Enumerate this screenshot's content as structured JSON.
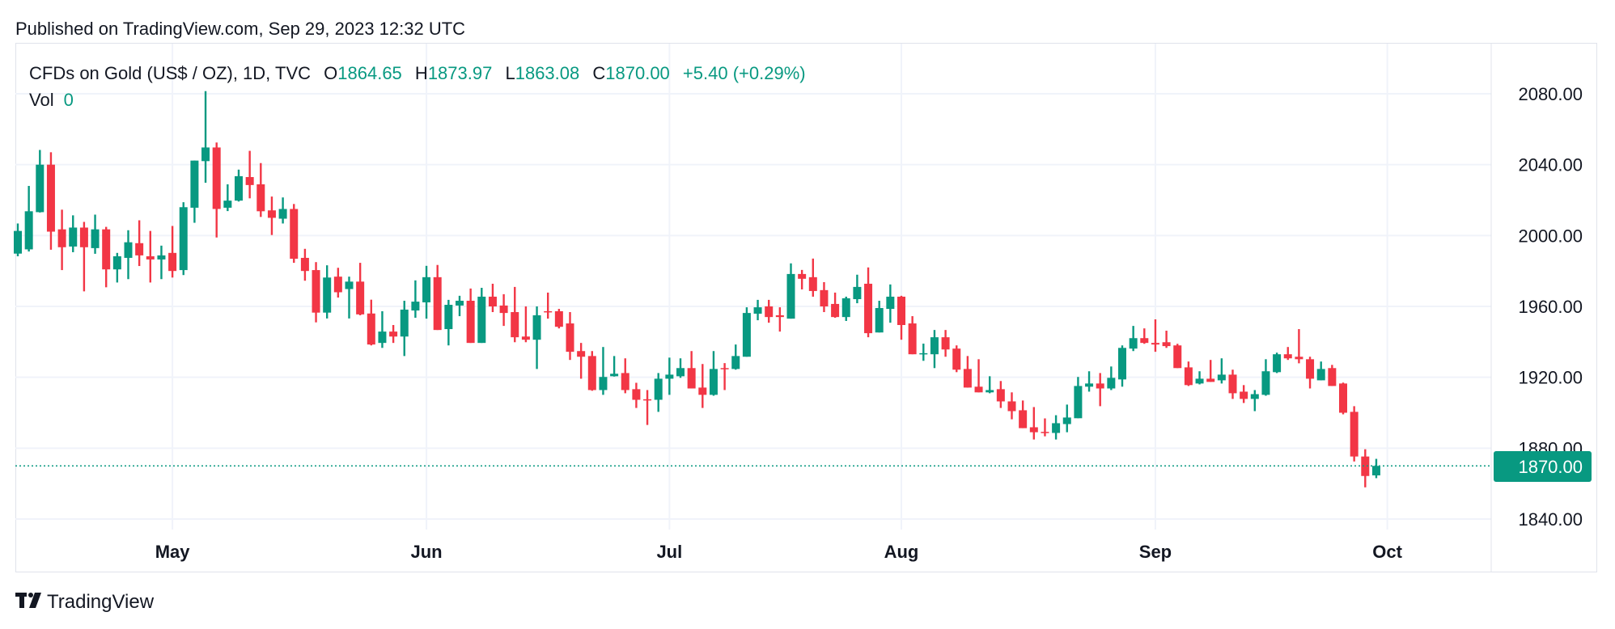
{
  "header": {
    "published": "Published on TradingView.com, Sep 29, 2023 12:32 UTC"
  },
  "legend": {
    "symbol": "CFDs on Gold (US$ / OZ), 1D, TVC",
    "o_label": "O",
    "o_value": "1864.65",
    "h_label": "H",
    "h_value": "1873.97",
    "l_label": "L",
    "l_value": "1863.08",
    "c_label": "C",
    "c_value": "1870.00",
    "change": "+5.40 (+0.29%)",
    "vol_label": "Vol",
    "vol_value": "0"
  },
  "footer": {
    "brand": "TradingView"
  },
  "colors": {
    "up": "#089981",
    "down": "#F23645",
    "grid": "#F0F3FA",
    "text": "#131722"
  },
  "chart_data": {
    "type": "candlestick",
    "title": "CFDs on Gold (US$ / OZ), 1D, TVC",
    "ylim": [
      1830,
      2095
    ],
    "y_ticks": [
      "2080.00",
      "2040.00",
      "2000.00",
      "1960.00",
      "1920.00",
      "1880.00",
      "1840.00"
    ],
    "y_tick_values": [
      2080,
      2040,
      2000,
      1960,
      1920,
      1880,
      1840
    ],
    "last_price": 1870.0,
    "last_price_label": "1870.00",
    "month_ticks": [
      {
        "label": "May",
        "index": 14
      },
      {
        "label": "Jun",
        "index": 37
      },
      {
        "label": "Jul",
        "index": 59
      },
      {
        "label": "Aug",
        "index": 80
      },
      {
        "label": "Sep",
        "index": 103
      },
      {
        "label": "Oct",
        "index": 124
      }
    ],
    "ohlc_fields": [
      "open",
      "high",
      "low",
      "close"
    ],
    "candles": [
      [
        1989.8,
        2006.8,
        1988.3,
        2002.6
      ],
      [
        1992.2,
        2028.0,
        1991.0,
        2013.7
      ],
      [
        2013.2,
        2048.3,
        2013.0,
        2040.0
      ],
      [
        2040.0,
        2047.0,
        1992.0,
        2002.2
      ],
      [
        2003.5,
        2014.6,
        1980.5,
        1993.4
      ],
      [
        1993.8,
        2011.4,
        1990.6,
        2004.5
      ],
      [
        2004.5,
        2007.7,
        1968.5,
        1993.4
      ],
      [
        1992.9,
        2011.8,
        1989.7,
        2003.5
      ],
      [
        2003.5,
        2004.9,
        1970.8,
        1980.9
      ],
      [
        1980.9,
        1990.2,
        1973.5,
        1988.3
      ],
      [
        1987.4,
        2003.0,
        1975.4,
        1996.2
      ],
      [
        1995.7,
        2008.6,
        1982.8,
        1988.8
      ],
      [
        1988.3,
        2002.6,
        1973.5,
        1986.5
      ],
      [
        1986.5,
        1994.3,
        1975.4,
        1988.8
      ],
      [
        1990.2,
        2005.4,
        1976.3,
        1980.0
      ],
      [
        1980.5,
        2018.8,
        1977.7,
        2016.0
      ],
      [
        2015.7,
        2042.3,
        2007.2,
        2042.3
      ],
      [
        2042.0,
        2081.5,
        2029.8,
        2049.7
      ],
      [
        2049.7,
        2052.5,
        1998.9,
        2015.0
      ],
      [
        2015.7,
        2028.9,
        2013.8,
        2019.7
      ],
      [
        2019.7,
        2037.2,
        2019.2,
        2033.5
      ],
      [
        2033.0,
        2047.8,
        2021.0,
        2028.5
      ],
      [
        2028.9,
        2040.9,
        2010.5,
        2013.7
      ],
      [
        2014.2,
        2022.0,
        2000.3,
        2010.0
      ],
      [
        2009.5,
        2021.5,
        2006.8,
        2015.0
      ],
      [
        2015.0,
        2017.8,
        1984.6,
        1986.9
      ],
      [
        1987.4,
        1992.5,
        1974.5,
        1980.0
      ],
      [
        1980.5,
        1985.0,
        1951.0,
        1956.5
      ],
      [
        1956.5,
        1983.2,
        1953.2,
        1976.3
      ],
      [
        1976.8,
        1981.8,
        1965.0,
        1968.0
      ],
      [
        1969.8,
        1976.8,
        1953.2,
        1974.0
      ],
      [
        1974.0,
        1984.6,
        1955.0,
        1955.5
      ],
      [
        1956.0,
        1963.8,
        1938.0,
        1938.5
      ],
      [
        1939.4,
        1957.3,
        1936.6,
        1945.8
      ],
      [
        1945.8,
        1949.5,
        1939.4,
        1943.0
      ],
      [
        1943.0,
        1963.2,
        1932.0,
        1958.2
      ],
      [
        1957.7,
        1974.7,
        1953.6,
        1962.7
      ],
      [
        1962.3,
        1982.9,
        1953.1,
        1976.5
      ],
      [
        1976.5,
        1983.4,
        1946.7,
        1946.7
      ],
      [
        1947.2,
        1963.7,
        1938.0,
        1960.9
      ],
      [
        1960.5,
        1966.0,
        1954.5,
        1963.2
      ],
      [
        1963.2,
        1970.1,
        1939.4,
        1939.4
      ],
      [
        1939.4,
        1970.5,
        1939.4,
        1965.5
      ],
      [
        1965.5,
        1972.8,
        1956.8,
        1960.0
      ],
      [
        1960.5,
        1966.9,
        1949.0,
        1956.3
      ],
      [
        1956.8,
        1971.0,
        1939.8,
        1942.6
      ],
      [
        1943.0,
        1960.0,
        1939.8,
        1941.2
      ],
      [
        1941.2,
        1960.0,
        1924.7,
        1955.0
      ],
      [
        1957.3,
        1967.8,
        1953.1,
        1956.8
      ],
      [
        1957.3,
        1958.6,
        1947.6,
        1948.5
      ],
      [
        1950.4,
        1956.8,
        1929.8,
        1934.4
      ],
      [
        1934.8,
        1939.4,
        1919.2,
        1931.6
      ],
      [
        1932.0,
        1934.8,
        1912.4,
        1912.8
      ],
      [
        1912.8,
        1937.1,
        1910.1,
        1920.2
      ],
      [
        1920.6,
        1932.0,
        1920.4,
        1922.0
      ],
      [
        1922.4,
        1930.7,
        1911.0,
        1912.8
      ],
      [
        1913.3,
        1916.9,
        1902.7,
        1907.3
      ],
      [
        1907.6,
        1912.8,
        1893.1,
        1907.3
      ],
      [
        1907.3,
        1922.4,
        1900.5,
        1919.2
      ],
      [
        1919.2,
        1931.1,
        1910.1,
        1921.5
      ],
      [
        1920.6,
        1930.7,
        1919.7,
        1925.2
      ],
      [
        1925.2,
        1934.8,
        1913.7,
        1913.7
      ],
      [
        1914.2,
        1927.5,
        1902.7,
        1910.1
      ],
      [
        1910.1,
        1934.8,
        1909.6,
        1924.7
      ],
      [
        1925.2,
        1928.0,
        1912.8,
        1924.7
      ],
      [
        1924.7,
        1938.5,
        1924.3,
        1932.0
      ],
      [
        1931.6,
        1959.5,
        1931.6,
        1956.3
      ],
      [
        1955.9,
        1963.7,
        1952.2,
        1959.5
      ],
      [
        1960.0,
        1963.7,
        1950.8,
        1954.0
      ],
      [
        1955.0,
        1959.5,
        1945.8,
        1954.0
      ],
      [
        1953.1,
        1984.3,
        1953.1,
        1978.3
      ],
      [
        1978.3,
        1980.6,
        1969.6,
        1975.6
      ],
      [
        1976.5,
        1987.0,
        1965.5,
        1968.7
      ],
      [
        1969.2,
        1973.7,
        1956.8,
        1960.0
      ],
      [
        1961.4,
        1967.8,
        1953.6,
        1954.0
      ],
      [
        1954.0,
        1965.5,
        1951.8,
        1964.6
      ],
      [
        1964.1,
        1977.9,
        1961.8,
        1971.0
      ],
      [
        1972.8,
        1982.0,
        1942.6,
        1944.9
      ],
      [
        1945.3,
        1963.2,
        1945.3,
        1959.1
      ],
      [
        1958.6,
        1972.4,
        1950.8,
        1965.5
      ],
      [
        1965.5,
        1966.0,
        1941.2,
        1949.5
      ],
      [
        1950.4,
        1954.5,
        1933.0,
        1933.0
      ],
      [
        1933.0,
        1939.0,
        1929.3,
        1933.6
      ],
      [
        1933.0,
        1946.7,
        1925.2,
        1942.6
      ],
      [
        1942.6,
        1946.7,
        1931.6,
        1935.7
      ],
      [
        1936.2,
        1938.0,
        1922.9,
        1924.3
      ],
      [
        1924.7,
        1932.0,
        1914.2,
        1914.2
      ],
      [
        1914.7,
        1930.2,
        1911.5,
        1911.5
      ],
      [
        1911.5,
        1920.6,
        1911.0,
        1912.8
      ],
      [
        1913.3,
        1917.9,
        1902.7,
        1906.4
      ],
      [
        1906.4,
        1911.5,
        1896.3,
        1900.9
      ],
      [
        1901.4,
        1906.9,
        1891.3,
        1891.3
      ],
      [
        1891.8,
        1903.2,
        1884.9,
        1889.0
      ],
      [
        1889.2,
        1896.8,
        1886.7,
        1888.6
      ],
      [
        1888.6,
        1898.6,
        1884.9,
        1894.1
      ],
      [
        1893.6,
        1904.6,
        1889.0,
        1897.3
      ],
      [
        1896.9,
        1920.2,
        1896.9,
        1915.1
      ],
      [
        1914.7,
        1923.4,
        1911.9,
        1916.5
      ],
      [
        1916.5,
        1922.4,
        1903.7,
        1913.7
      ],
      [
        1913.7,
        1926.1,
        1912.8,
        1919.7
      ],
      [
        1918.8,
        1938.0,
        1914.7,
        1936.6
      ],
      [
        1936.2,
        1949.0,
        1934.8,
        1942.1
      ],
      [
        1942.1,
        1947.6,
        1938.9,
        1939.4
      ],
      [
        1939.4,
        1952.7,
        1934.4,
        1938.5
      ],
      [
        1939.8,
        1946.3,
        1936.6,
        1937.6
      ],
      [
        1938.0,
        1938.9,
        1925.2,
        1925.2
      ],
      [
        1925.6,
        1928.9,
        1915.1,
        1915.6
      ],
      [
        1916.5,
        1923.4,
        1916.0,
        1919.2
      ],
      [
        1919.2,
        1929.8,
        1917.4,
        1917.4
      ],
      [
        1918.3,
        1930.7,
        1916.5,
        1921.5
      ],
      [
        1921.5,
        1924.3,
        1907.8,
        1911.0
      ],
      [
        1911.9,
        1915.6,
        1905.5,
        1907.8
      ],
      [
        1907.8,
        1912.8,
        1900.9,
        1910.5
      ],
      [
        1910.1,
        1930.2,
        1909.6,
        1923.4
      ],
      [
        1922.9,
        1933.9,
        1922.4,
        1933.0
      ],
      [
        1933.0,
        1937.1,
        1929.8,
        1930.7
      ],
      [
        1931.6,
        1947.2,
        1927.9,
        1930.2
      ],
      [
        1930.2,
        1931.6,
        1913.7,
        1919.2
      ],
      [
        1918.3,
        1928.9,
        1918.3,
        1924.7
      ],
      [
        1925.2,
        1927.0,
        1915.1,
        1915.1
      ],
      [
        1916.5,
        1917.0,
        1899.1,
        1900.0
      ],
      [
        1900.5,
        1903.7,
        1872.5,
        1875.3
      ],
      [
        1875.3,
        1879.4,
        1857.9,
        1864.3
      ],
      [
        1864.65,
        1873.97,
        1863.08,
        1870.0
      ]
    ]
  }
}
